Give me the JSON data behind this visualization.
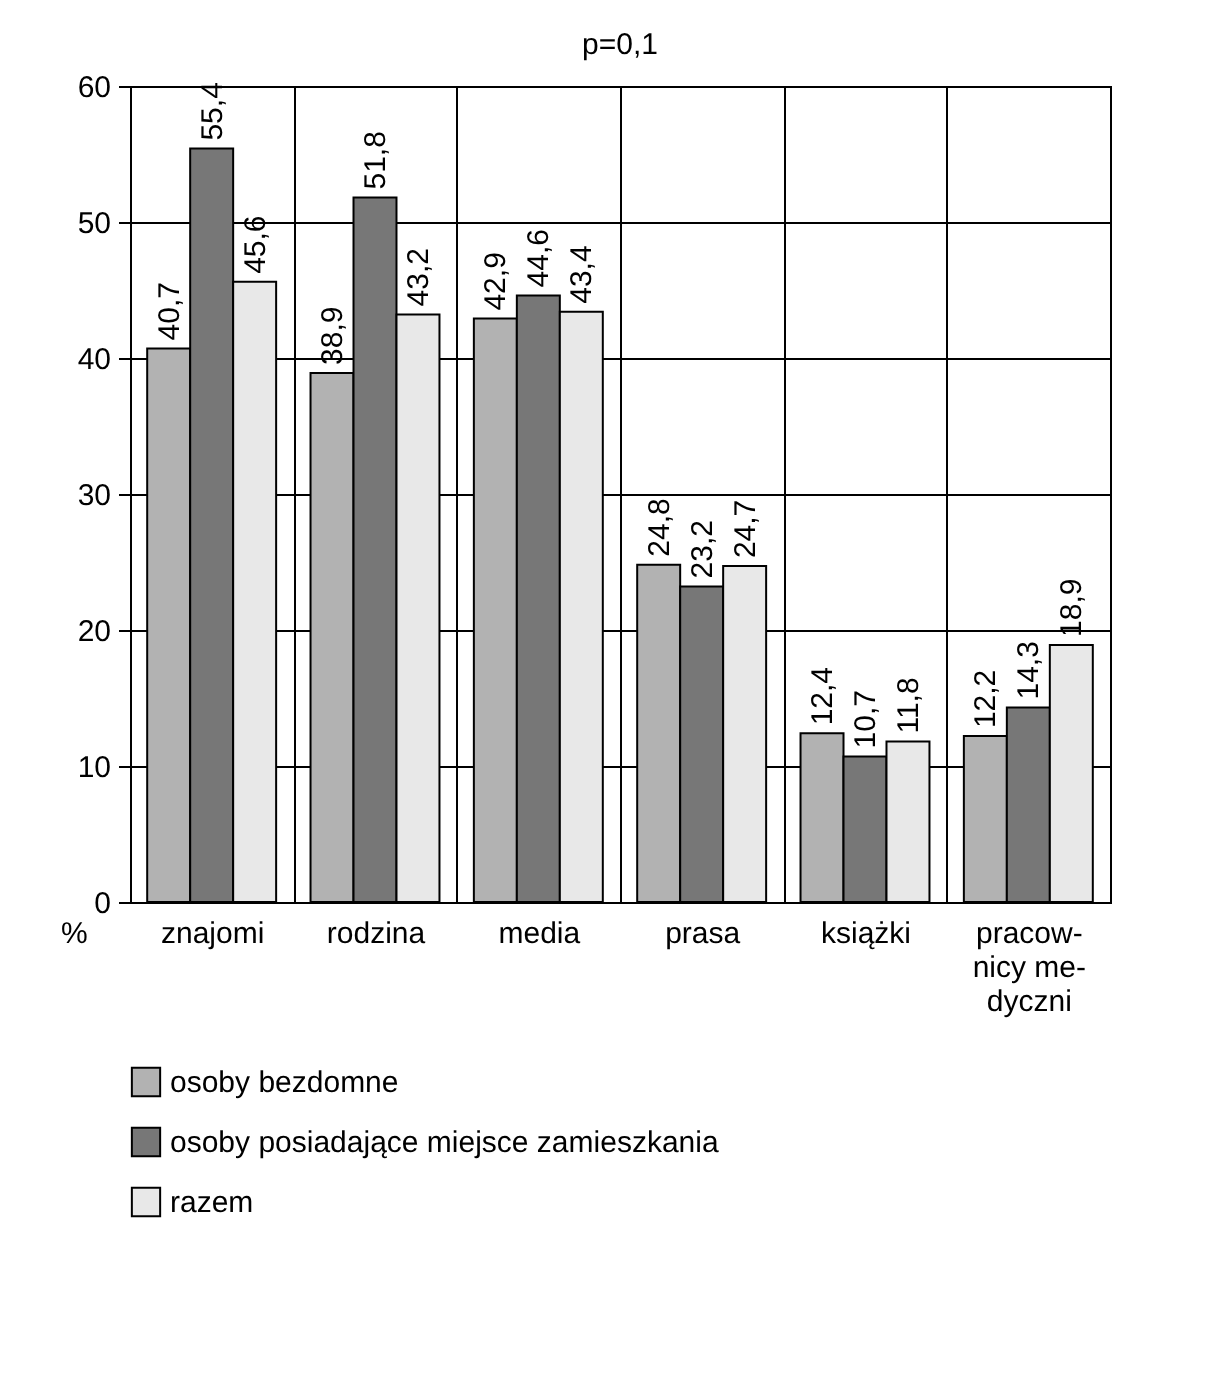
{
  "chart_data": {
    "type": "bar",
    "title": "p=0,1",
    "ylabel": "%",
    "categories": [
      "znajomi",
      "rodzina",
      "media",
      "prasa",
      "książki",
      "pracow-\nnicy me-\ndyczni"
    ],
    "series": [
      {
        "name": "osoby bezdomne",
        "color": "#b2b2b2",
        "values": [
          40.7,
          38.9,
          42.9,
          24.8,
          12.4,
          12.2
        ],
        "value_labels": [
          "40,7",
          "38,9",
          "42,9",
          "24,8",
          "12,4",
          "12,2"
        ]
      },
      {
        "name": "osoby posiadające miejsce zamieszkania",
        "color": "#777777",
        "values": [
          55.4,
          51.8,
          44.6,
          23.2,
          10.7,
          14.3
        ],
        "value_labels": [
          "55,4",
          "51,8",
          "44,6",
          "23,2",
          "10,7",
          "14,3"
        ]
      },
      {
        "name": "razem",
        "color": "#e8e8e8",
        "values": [
          45.6,
          43.2,
          43.4,
          24.7,
          11.8,
          18.9
        ],
        "value_labels": [
          "45,6",
          "43,2",
          "43,4",
          "24,7",
          "11,8",
          "18,9"
        ]
      }
    ],
    "ylim": [
      0,
      60
    ],
    "yticks": [
      0,
      10,
      20,
      30,
      40,
      50,
      60
    ],
    "grid": true,
    "legend": "bottom left"
  }
}
